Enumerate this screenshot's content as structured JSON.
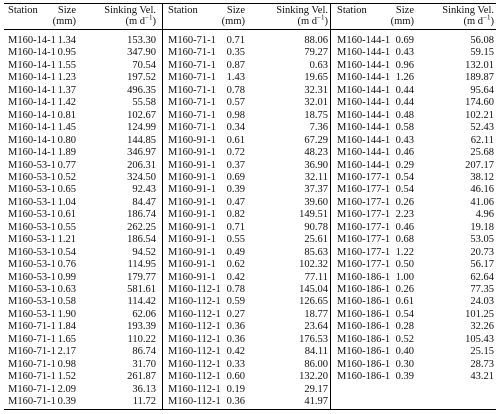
{
  "table": {
    "columns": [
      {
        "name": "Station"
      },
      {
        "name": "Size",
        "unit": "(mm)"
      },
      {
        "name": "Sinking Vel.",
        "unit": "(m d",
        "unit_sup": "−1",
        "unit_end": ")"
      }
    ],
    "groups": [
      {
        "rows": [
          [
            "M160-14-1",
            "1.34",
            "153.30"
          ],
          [
            "M160-14-1",
            "0.95",
            "347.90"
          ],
          [
            "M160-14-1",
            "1.55",
            "70.54"
          ],
          [
            "M160-14-1",
            "1.23",
            "197.52"
          ],
          [
            "M160-14-1",
            "1.37",
            "496.35"
          ],
          [
            "M160-14-1",
            "1.42",
            "55.58"
          ],
          [
            "M160-14-1",
            "0.81",
            "102.67"
          ],
          [
            "M160-14-1",
            "1.45",
            "124.99"
          ],
          [
            "M160-14-1",
            "0.80",
            "144.85"
          ],
          [
            "M160-14-1",
            "1.89",
            "346.97"
          ],
          [
            "M160-53-1",
            "0.77",
            "206.31"
          ],
          [
            "M160-53-1",
            "0.52",
            "324.50"
          ],
          [
            "M160-53-1",
            "0.65",
            "92.43"
          ],
          [
            "M160-53-1",
            "1.04",
            "84.47"
          ],
          [
            "M160-53-1",
            "0.61",
            "186.74"
          ],
          [
            "M160-53-1",
            "0.55",
            "262.25"
          ],
          [
            "M160-53-1",
            "1.21",
            "186.54"
          ],
          [
            "M160-53-1",
            "0.54",
            "94.52"
          ],
          [
            "M160-53-1",
            "0.76",
            "114.95"
          ],
          [
            "M160-53-1",
            "0.99",
            "179.77"
          ],
          [
            "M160-53-1",
            "0.63",
            "581.61"
          ],
          [
            "M160-53-1",
            "0.58",
            "114.42"
          ],
          [
            "M160-53-1",
            "1.90",
            "62.06"
          ],
          [
            "M160-71-1",
            "1.84",
            "193.39"
          ],
          [
            "M160-71-1",
            "1.65",
            "110.22"
          ],
          [
            "M160-71-1",
            "2.17",
            "86.74"
          ],
          [
            "M160-71-1",
            "0.98",
            "31.70"
          ],
          [
            "M160-71-1",
            "1.52",
            "261.87"
          ],
          [
            "M160-71-1",
            "2.09",
            "36.13"
          ],
          [
            "M160-71-1",
            "0.39",
            "11.72"
          ]
        ]
      },
      {
        "rows": [
          [
            "M160-71-1",
            "0.71",
            "88.06"
          ],
          [
            "M160-71-1",
            "0.35",
            "79.27"
          ],
          [
            "M160-71-1",
            "0.87",
            "0.63"
          ],
          [
            "M160-71-1",
            "1.43",
            "19.65"
          ],
          [
            "M160-71-1",
            "0.78",
            "32.31"
          ],
          [
            "M160-71-1",
            "0.57",
            "32.01"
          ],
          [
            "M160-71-1",
            "0.98",
            "18.75"
          ],
          [
            "M160-71-1",
            "0.34",
            "7.36"
          ],
          [
            "M160-91-1",
            "0.61",
            "67.29"
          ],
          [
            "M160-91-1",
            "0.72",
            "48.23"
          ],
          [
            "M160-91-1",
            "0.37",
            "36.90"
          ],
          [
            "M160-91-1",
            "0.69",
            "32.11"
          ],
          [
            "M160-91-1",
            "0.39",
            "37.37"
          ],
          [
            "M160-91-1",
            "0.47",
            "39.60"
          ],
          [
            "M160-91-1",
            "0.82",
            "149.51"
          ],
          [
            "M160-91-1",
            "0.71",
            "90.78"
          ],
          [
            "M160-91-1",
            "0.55",
            "25.61"
          ],
          [
            "M160-91-1",
            "0.49",
            "85.63"
          ],
          [
            "M160-91-1",
            "0.62",
            "102.32"
          ],
          [
            "M160-91-1",
            "0.42",
            "77.11"
          ],
          [
            "M160-112-1",
            "0.78",
            "145.04"
          ],
          [
            "M160-112-1",
            "0.59",
            "126.65"
          ],
          [
            "M160-112-1",
            "0.27",
            "18.77"
          ],
          [
            "M160-112-1",
            "0.36",
            "23.64"
          ],
          [
            "M160-112-1",
            "0.36",
            "176.53"
          ],
          [
            "M160-112-1",
            "0.42",
            "84.11"
          ],
          [
            "M160-112-1",
            "0.33",
            "86.00"
          ],
          [
            "M160-112-1",
            "0.60",
            "132.20"
          ],
          [
            "M160-112-1",
            "0.19",
            "29.17"
          ],
          [
            "M160-112-1",
            "0.36",
            "41.97"
          ]
        ]
      },
      {
        "rows": [
          [
            "M160-144-1",
            "0.69",
            "56.08"
          ],
          [
            "M160-144-1",
            "0.43",
            "59.15"
          ],
          [
            "M160-144-1",
            "0.96",
            "132.01"
          ],
          [
            "M160-144-1",
            "1.26",
            "189.87"
          ],
          [
            "M160-144-1",
            "0.44",
            "95.64"
          ],
          [
            "M160-144-1",
            "0.44",
            "174.60"
          ],
          [
            "M160-144-1",
            "0.48",
            "102.21"
          ],
          [
            "M160-144-1",
            "0.58",
            "52.43"
          ],
          [
            "M160-144-1",
            "0.43",
            "62.11"
          ],
          [
            "M160-144-1",
            "0.46",
            "25.68"
          ],
          [
            "M160-144-1",
            "0.29",
            "207.17"
          ],
          [
            "M160-177-1",
            "0.54",
            "38.12"
          ],
          [
            "M160-177-1",
            "0.54",
            "46.16"
          ],
          [
            "M160-177-1",
            "0.26",
            "41.06"
          ],
          [
            "M160-177-1",
            "2.23",
            "4.96"
          ],
          [
            "M160-177-1",
            "0.46",
            "19.18"
          ],
          [
            "M160-177-1",
            "0.68",
            "53.05"
          ],
          [
            "M160-177-1",
            "1.22",
            "20.73"
          ],
          [
            "M160-177-1",
            "0.50",
            "56.17"
          ],
          [
            "M160-186-1",
            "1.00",
            "62.64"
          ],
          [
            "M160-186-1",
            "0.26",
            "77.35"
          ],
          [
            "M160-186-1",
            "0.61",
            "24.03"
          ],
          [
            "M160-186-1",
            "0.54",
            "101.25"
          ],
          [
            "M160-186-1",
            "0.28",
            "32.26"
          ],
          [
            "M160-186-1",
            "0.52",
            "105.43"
          ],
          [
            "M160-186-1",
            "0.40",
            "25.15"
          ],
          [
            "M160-186-1",
            "0.30",
            "28.73"
          ],
          [
            "M160-186-1",
            "0.39",
            "43.21"
          ]
        ]
      }
    ]
  }
}
